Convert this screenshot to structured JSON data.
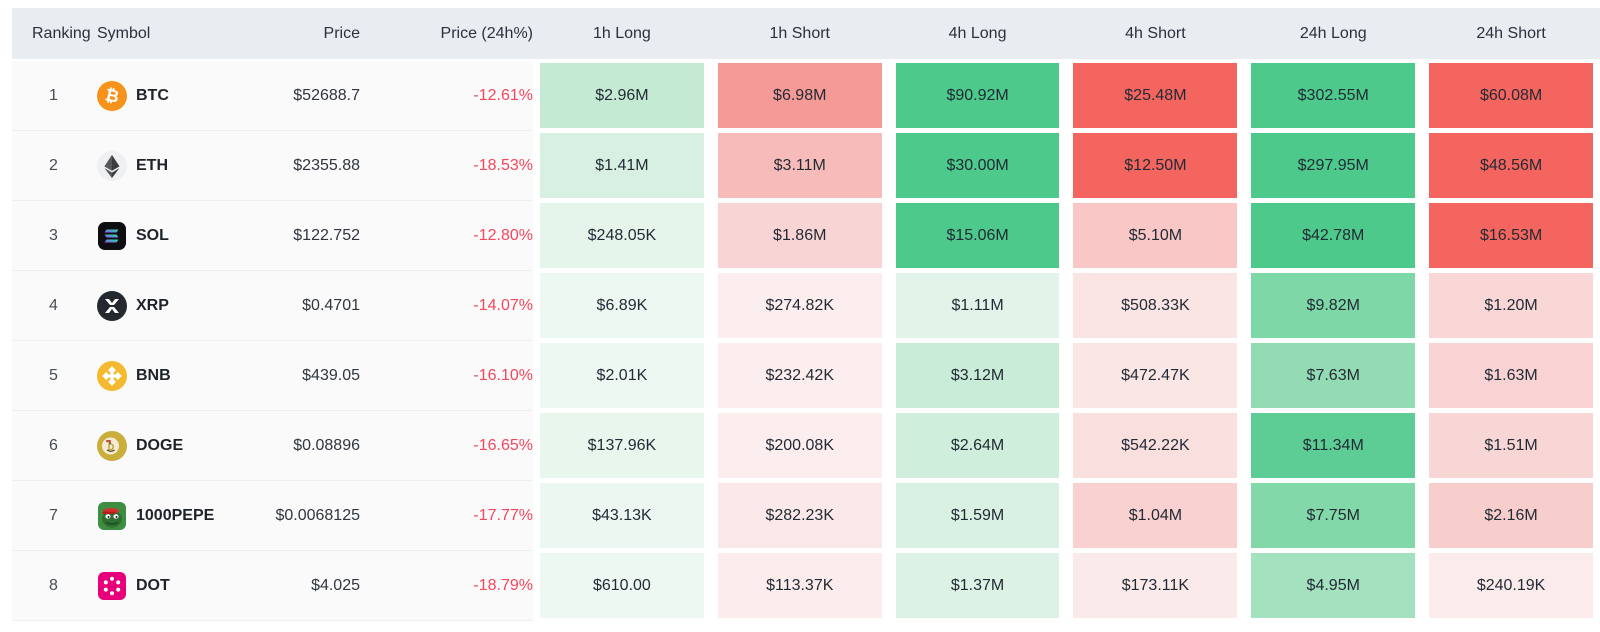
{
  "table": {
    "columns": [
      "Ranking",
      "Symbol",
      "Price",
      "Price (24h%)",
      "1h Long",
      "1h Short",
      "4h Long",
      "4h Short",
      "24h Long",
      "24h Short"
    ],
    "colors": {
      "header_bg": "#e9edf2",
      "negative_text": "#f5465d",
      "long_strong": "#4dc98b",
      "short_strong": "#f5655f",
      "row_bg": "#fafafa"
    },
    "rows": [
      {
        "rank": "1",
        "symbol": "BTC",
        "icon": "btc",
        "price": "$52688.7",
        "change": "-12.61%",
        "cells": [
          {
            "value": "$2.96M",
            "bg": "#c5ead4"
          },
          {
            "value": "$6.98M",
            "bg": "#f59a96"
          },
          {
            "value": "$90.92M",
            "bg": "#4dc98b"
          },
          {
            "value": "$25.48M",
            "bg": "#f5655f"
          },
          {
            "value": "$302.55M",
            "bg": "#4dc98b"
          },
          {
            "value": "$60.08M",
            "bg": "#f5655f"
          }
        ]
      },
      {
        "rank": "2",
        "symbol": "ETH",
        "icon": "eth",
        "price": "$2355.88",
        "change": "-18.53%",
        "cells": [
          {
            "value": "$1.41M",
            "bg": "#d7f0e2"
          },
          {
            "value": "$3.11M",
            "bg": "#f7bcba"
          },
          {
            "value": "$30.00M",
            "bg": "#4dc98b"
          },
          {
            "value": "$12.50M",
            "bg": "#f5655f"
          },
          {
            "value": "$297.95M",
            "bg": "#4dc98b"
          },
          {
            "value": "$48.56M",
            "bg": "#f5655f"
          }
        ]
      },
      {
        "rank": "3",
        "symbol": "SOL",
        "icon": "sol",
        "price": "$122.752",
        "change": "-12.80%",
        "cells": [
          {
            "value": "$248.05K",
            "bg": "#e6f5ec"
          },
          {
            "value": "$1.86M",
            "bg": "#f9d4d4"
          },
          {
            "value": "$15.06M",
            "bg": "#4dc98b"
          },
          {
            "value": "$5.10M",
            "bg": "#f8c7c6"
          },
          {
            "value": "$42.78M",
            "bg": "#4dc98b"
          },
          {
            "value": "$16.53M",
            "bg": "#f5655f"
          }
        ]
      },
      {
        "rank": "4",
        "symbol": "XRP",
        "icon": "xrp",
        "price": "$0.4701",
        "change": "-14.07%",
        "cells": [
          {
            "value": "$6.89K",
            "bg": "#edf8f2"
          },
          {
            "value": "$274.82K",
            "bg": "#fceeee"
          },
          {
            "value": "$1.11M",
            "bg": "#e2f4ea"
          },
          {
            "value": "$508.33K",
            "bg": "#fbe4e4"
          },
          {
            "value": "$9.82M",
            "bg": "#7ed7a6"
          },
          {
            "value": "$1.20M",
            "bg": "#f9d7d7"
          }
        ]
      },
      {
        "rank": "5",
        "symbol": "BNB",
        "icon": "bnb",
        "price": "$439.05",
        "change": "-16.10%",
        "cells": [
          {
            "value": "$2.01K",
            "bg": "#edf8f2"
          },
          {
            "value": "$232.42K",
            "bg": "#fceeee"
          },
          {
            "value": "$3.12M",
            "bg": "#c9ecd8"
          },
          {
            "value": "$472.47K",
            "bg": "#fbe6e6"
          },
          {
            "value": "$7.63M",
            "bg": "#93dcb3"
          },
          {
            "value": "$1.63M",
            "bg": "#f9d3d3"
          }
        ]
      },
      {
        "rank": "6",
        "symbol": "DOGE",
        "icon": "doge",
        "price": "$0.08896",
        "change": "-16.65%",
        "cells": [
          {
            "value": "$137.96K",
            "bg": "#e9f6ee"
          },
          {
            "value": "$200.08K",
            "bg": "#fcedee"
          },
          {
            "value": "$2.64M",
            "bg": "#cfeedb"
          },
          {
            "value": "$542.22K",
            "bg": "#fadfdf"
          },
          {
            "value": "$11.34M",
            "bg": "#5ecd95"
          },
          {
            "value": "$1.51M",
            "bg": "#f9d6d6"
          }
        ]
      },
      {
        "rank": "7",
        "symbol": "1000PEPE",
        "icon": "pepe",
        "price": "$0.0068125",
        "change": "-17.77%",
        "clipped": true,
        "cells": [
          {
            "value": "$43.13K",
            "bg": "#ecf7f1"
          },
          {
            "value": "$282.23K",
            "bg": "#fbe9e9"
          },
          {
            "value": "$1.59M",
            "bg": "#d9f1e2"
          },
          {
            "value": "$1.04M",
            "bg": "#f8d1d0"
          },
          {
            "value": "$7.75M",
            "bg": "#82d8a9"
          },
          {
            "value": "$2.16M",
            "bg": "#f8cecd"
          }
        ]
      },
      {
        "rank": "8",
        "symbol": "DOT",
        "icon": "dot",
        "price": "$4.025",
        "change": "-18.79%",
        "cells": [
          {
            "value": "$610.00",
            "bg": "#edf8f2"
          },
          {
            "value": "$113.37K",
            "bg": "#fcecec"
          },
          {
            "value": "$1.37M",
            "bg": "#dcf2e5"
          },
          {
            "value": "$173.11K",
            "bg": "#fbeaea"
          },
          {
            "value": "$4.95M",
            "bg": "#a3e1bf"
          },
          {
            "value": "$240.19K",
            "bg": "#fcebeb"
          }
        ]
      }
    ]
  }
}
